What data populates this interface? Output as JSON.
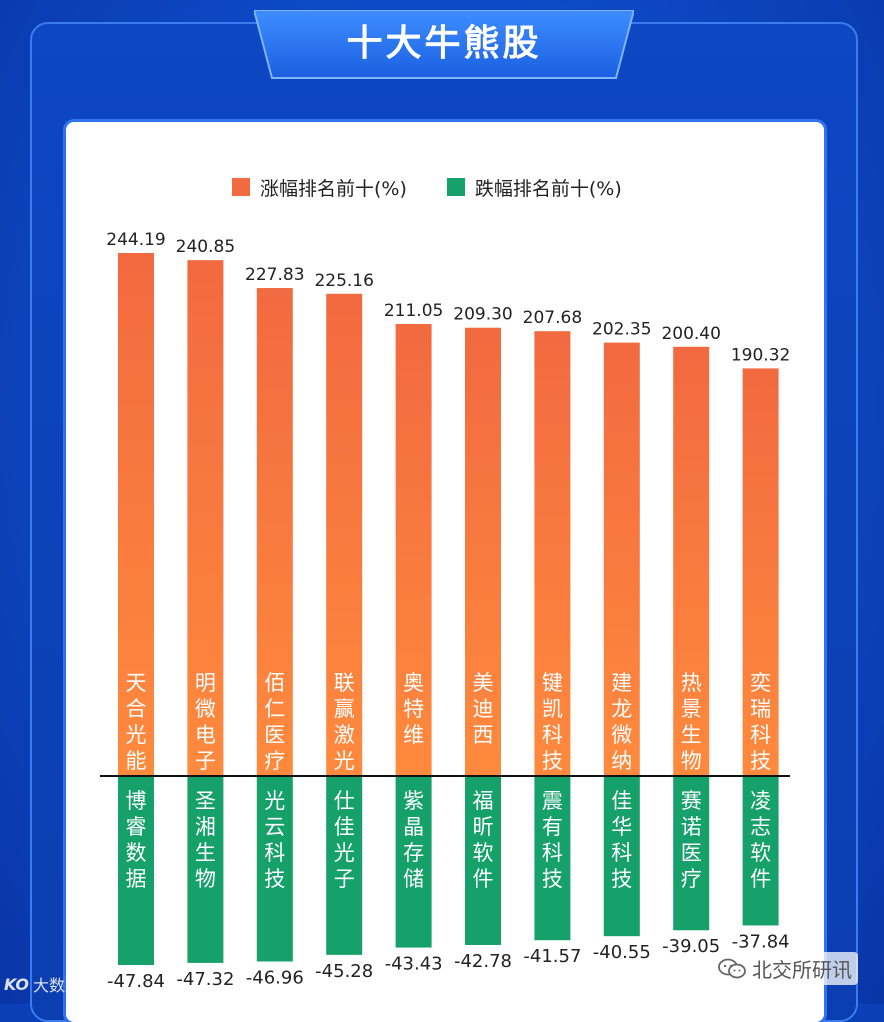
{
  "header": {
    "title": "十大牛熊股"
  },
  "colors": {
    "gain_top": "#f26a40",
    "gain_bottom": "#ff8a3d",
    "loss_top": "#16a06a",
    "loss_bottom": "#0f9a68",
    "label_text": "#ffffff",
    "value_text": "#222222"
  },
  "watermarks": {
    "left": "大数跨境",
    "right": "北交所研讯",
    "left_logo": "KO"
  },
  "chart_data": {
    "type": "bar",
    "title": "十大牛熊股",
    "legend": [
      "涨幅排名前十(%)",
      "跌幅排名前十(%)"
    ],
    "legend_position": "top",
    "series": [
      {
        "name": "涨幅排名前十(%)",
        "stocks": [
          "天合光能",
          "明微电子",
          "佰仁医疗",
          "联赢激光",
          "奥特维",
          "美迪西",
          "键凯科技",
          "建龙微纳",
          "热景生物",
          "奕瑞科技"
        ],
        "values": [
          244.19,
          240.85,
          227.83,
          225.16,
          211.05,
          209.3,
          207.68,
          202.35,
          200.4,
          190.32
        ],
        "labels": [
          "244.19",
          "240.85",
          "227.83",
          "225.16",
          "211.05",
          "209.30",
          "207.68",
          "202.35",
          "200.40",
          "190.32"
        ]
      },
      {
        "name": "跌幅排名前十(%)",
        "stocks": [
          "博睿数据",
          "圣湘生物",
          "光云科技",
          "仕佳光子",
          "紫晶存储",
          "福昕软件",
          "震有科技",
          "佳华科技",
          "赛诺医疗",
          "凌志软件"
        ],
        "values": [
          -47.84,
          -47.32,
          -46.96,
          -45.28,
          -43.43,
          -42.78,
          -41.57,
          -40.55,
          -39.05,
          -37.84
        ],
        "labels": [
          "-47.84",
          "-47.32",
          "-46.96",
          "-45.28",
          "-43.43",
          "-42.78",
          "-41.57",
          "-40.55",
          "-39.05",
          "-37.84"
        ]
      }
    ],
    "grid": false
  }
}
